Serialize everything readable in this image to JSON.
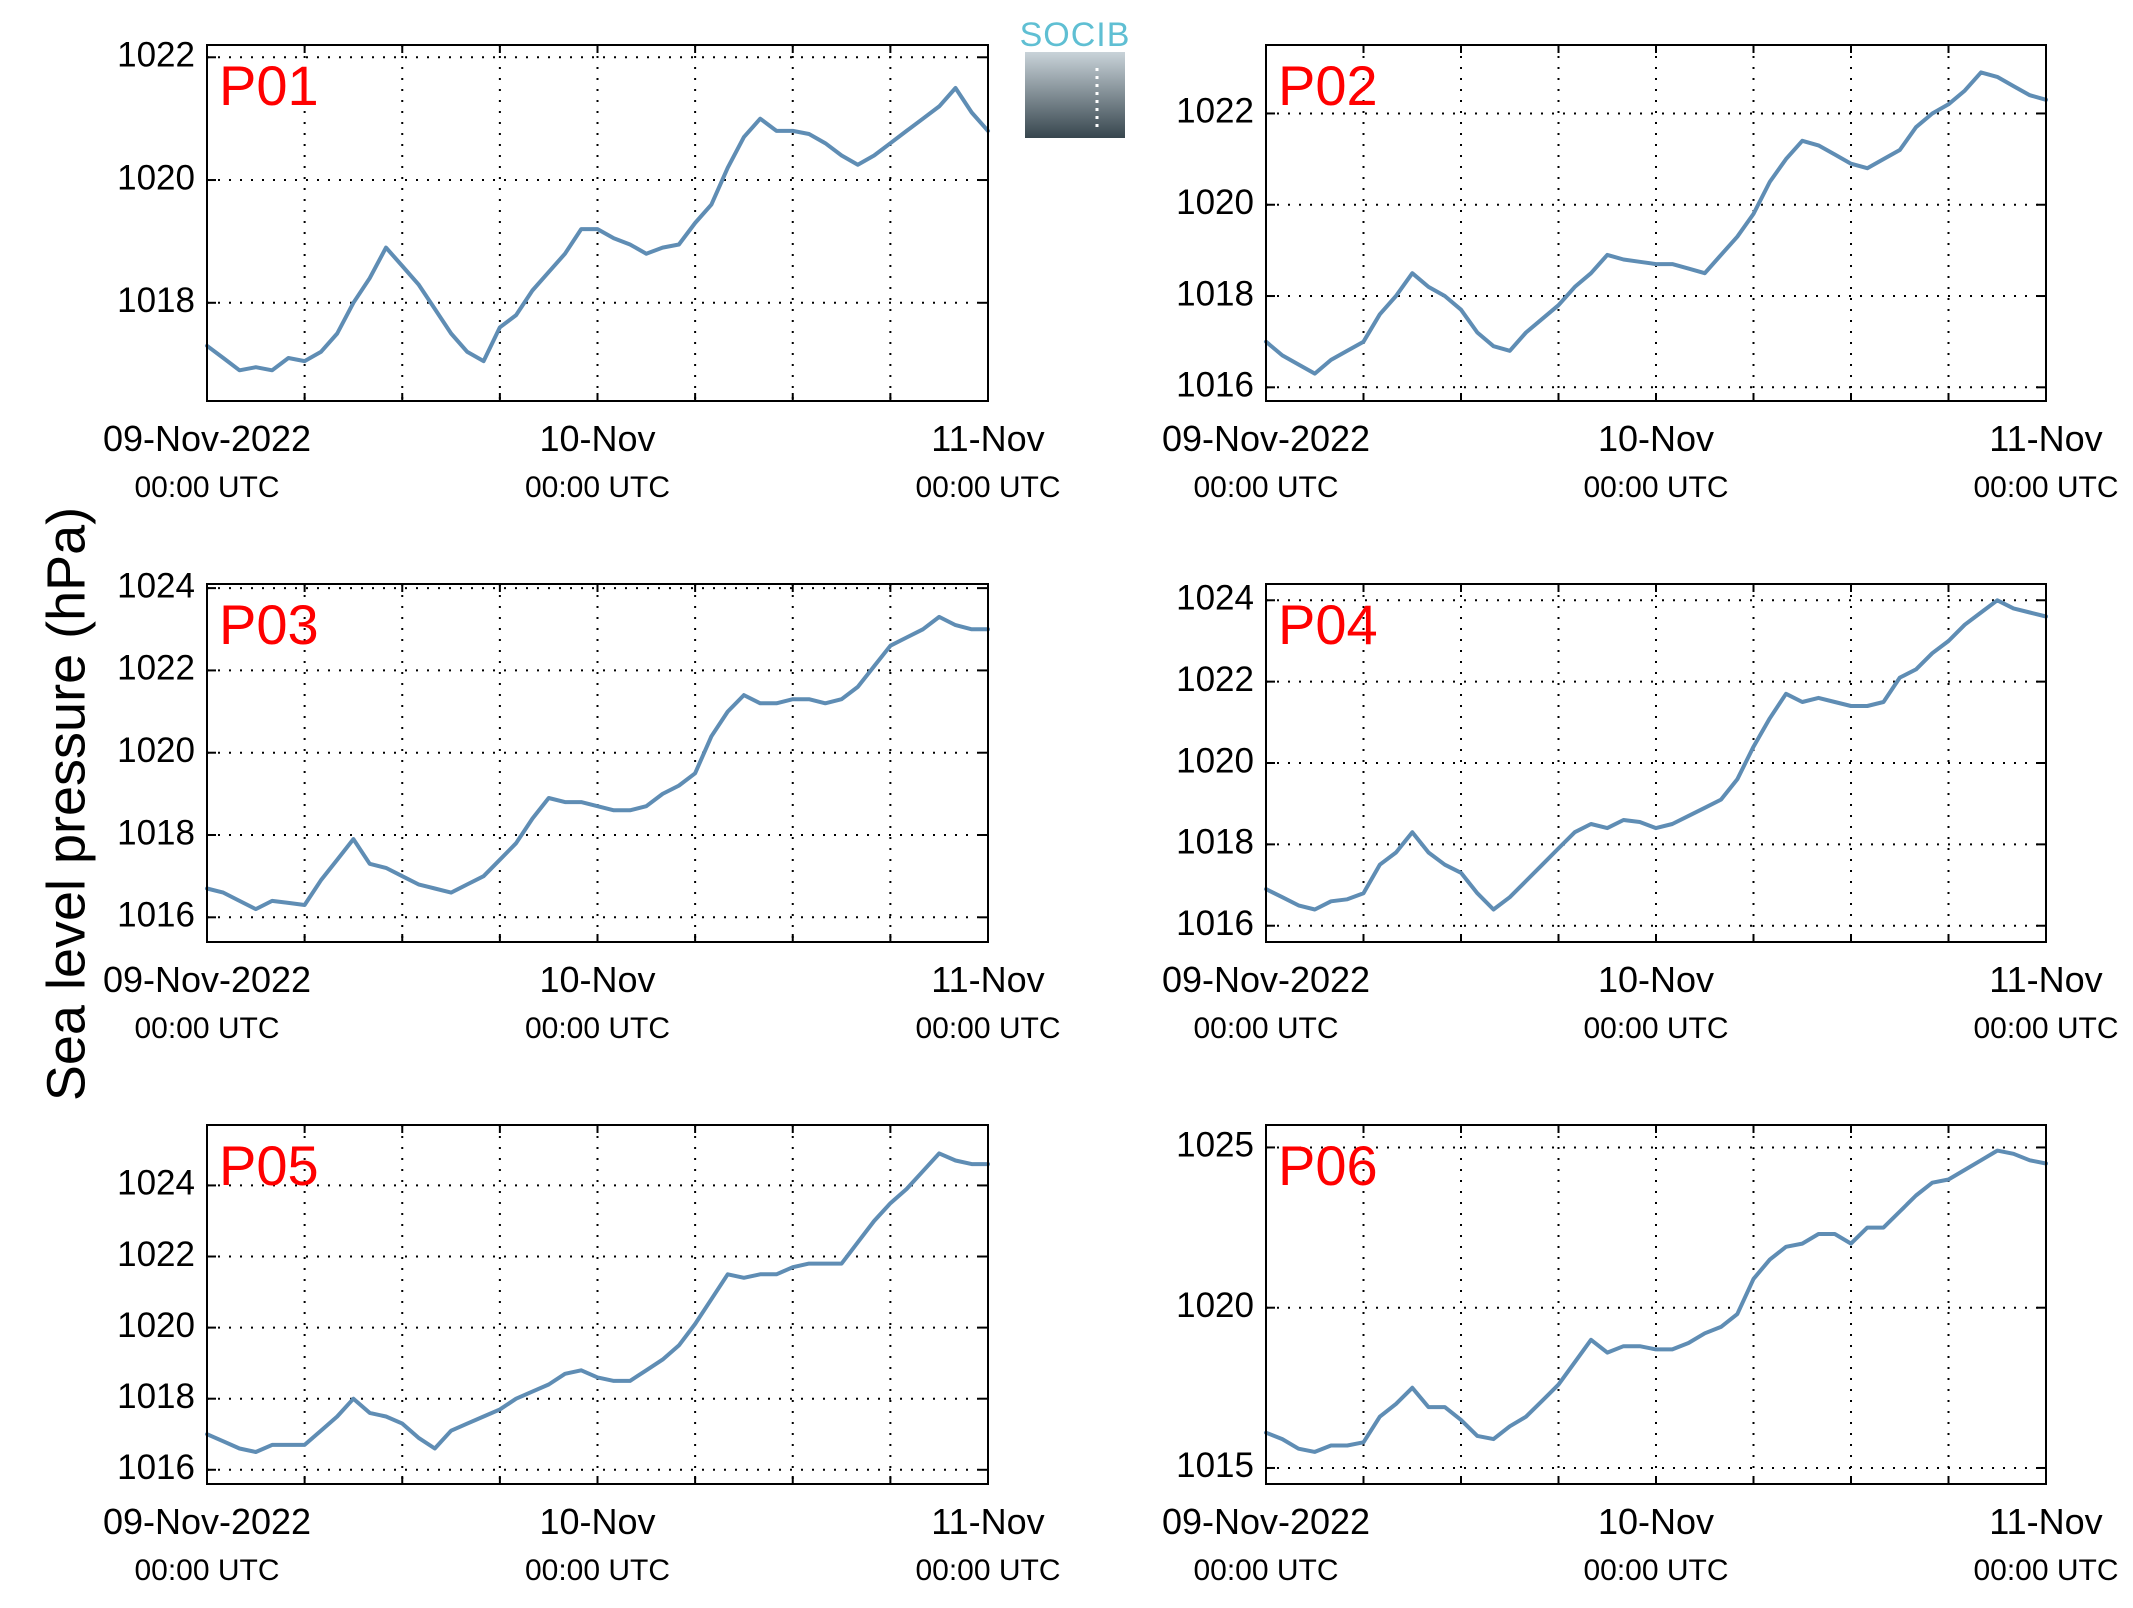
{
  "colors": {
    "series": "#5f8db4",
    "panel_label": "#ff0000",
    "logo_text": "#5fbfd3",
    "logo_top": "#c9d3d9",
    "logo_bottom": "#37464e"
  },
  "logo": {
    "text": "SOCIB"
  },
  "ylabel": "Sea level pressure (hPa)",
  "chart_data": [
    {
      "type": "line",
      "label": "P01",
      "ylim": [
        1016.4,
        1022.2
      ],
      "yticks": [
        1018,
        1020,
        1022
      ],
      "xlim": [
        0,
        48
      ],
      "xticks": [
        {
          "value": 0,
          "date": "09-Nov-2022",
          "time": "00:00 UTC"
        },
        {
          "value": 24,
          "date": "10-Nov",
          "time": "00:00 UTC"
        },
        {
          "value": 48,
          "date": "11-Nov",
          "time": "00:00 UTC"
        }
      ],
      "grid": true,
      "series": [
        {
          "x": [
            0,
            1,
            2,
            3,
            4,
            5,
            6,
            7,
            8,
            9,
            10,
            11,
            12,
            13,
            14,
            15,
            16,
            17,
            18,
            19,
            20,
            21,
            22,
            23,
            24,
            25,
            26,
            27,
            28,
            29,
            30,
            31,
            32,
            33,
            34,
            35,
            36,
            37,
            38,
            39,
            40,
            41,
            42,
            43,
            44,
            45,
            46,
            47,
            48
          ],
          "values": [
            1017.3,
            1017.1,
            1016.9,
            1016.95,
            1016.9,
            1017.1,
            1017.05,
            1017.2,
            1017.5,
            1018.0,
            1018.4,
            1018.9,
            1018.6,
            1018.3,
            1017.9,
            1017.5,
            1017.2,
            1017.05,
            1017.6,
            1017.8,
            1018.2,
            1018.5,
            1018.8,
            1019.2,
            1019.2,
            1019.05,
            1018.95,
            1018.8,
            1018.9,
            1018.95,
            1019.3,
            1019.6,
            1020.2,
            1020.7,
            1021.0,
            1020.8,
            1020.8,
            1020.75,
            1020.6,
            1020.4,
            1020.25,
            1020.4,
            1020.6,
            1020.8,
            1021.0,
            1021.2,
            1021.5,
            1021.1,
            1020.8
          ]
        }
      ]
    },
    {
      "type": "line",
      "label": "P02",
      "ylim": [
        1015.7,
        1023.5
      ],
      "yticks": [
        1016,
        1018,
        1020,
        1022
      ],
      "xlim": [
        0,
        48
      ],
      "xticks": [
        {
          "value": 0,
          "date": "09-Nov-2022",
          "time": "00:00 UTC"
        },
        {
          "value": 24,
          "date": "10-Nov",
          "time": "00:00 UTC"
        },
        {
          "value": 48,
          "date": "11-Nov",
          "time": "00:00 UTC"
        }
      ],
      "grid": true,
      "series": [
        {
          "x": [
            0,
            1,
            2,
            3,
            4,
            5,
            6,
            7,
            8,
            9,
            10,
            11,
            12,
            13,
            14,
            15,
            16,
            17,
            18,
            19,
            20,
            21,
            22,
            23,
            24,
            25,
            26,
            27,
            28,
            29,
            30,
            31,
            32,
            33,
            34,
            35,
            36,
            37,
            38,
            39,
            40,
            41,
            42,
            43,
            44,
            45,
            46,
            47,
            48
          ],
          "values": [
            1017.0,
            1016.7,
            1016.5,
            1016.3,
            1016.6,
            1016.8,
            1017.0,
            1017.6,
            1018.0,
            1018.5,
            1018.2,
            1018.0,
            1017.7,
            1017.2,
            1016.9,
            1016.8,
            1017.2,
            1017.5,
            1017.8,
            1018.2,
            1018.5,
            1018.9,
            1018.8,
            1018.75,
            1018.7,
            1018.7,
            1018.6,
            1018.5,
            1018.9,
            1019.3,
            1019.8,
            1020.5,
            1021.0,
            1021.4,
            1021.3,
            1021.1,
            1020.9,
            1020.8,
            1021.0,
            1021.2,
            1021.7,
            1022.0,
            1022.2,
            1022.5,
            1022.9,
            1022.8,
            1022.6,
            1022.4,
            1022.3
          ]
        }
      ]
    },
    {
      "type": "line",
      "label": "P03",
      "ylim": [
        1015.4,
        1024.1
      ],
      "yticks": [
        1016,
        1018,
        1020,
        1022,
        1024
      ],
      "xlim": [
        0,
        48
      ],
      "xticks": [
        {
          "value": 0,
          "date": "09-Nov-2022",
          "time": "00:00 UTC"
        },
        {
          "value": 24,
          "date": "10-Nov",
          "time": "00:00 UTC"
        },
        {
          "value": 48,
          "date": "11-Nov",
          "time": "00:00 UTC"
        }
      ],
      "grid": true,
      "series": [
        {
          "x": [
            0,
            1,
            2,
            3,
            4,
            5,
            6,
            7,
            8,
            9,
            10,
            11,
            12,
            13,
            14,
            15,
            16,
            17,
            18,
            19,
            20,
            21,
            22,
            23,
            24,
            25,
            26,
            27,
            28,
            29,
            30,
            31,
            32,
            33,
            34,
            35,
            36,
            37,
            38,
            39,
            40,
            41,
            42,
            43,
            44,
            45,
            46,
            47,
            48
          ],
          "values": [
            1016.7,
            1016.6,
            1016.4,
            1016.2,
            1016.4,
            1016.35,
            1016.3,
            1016.9,
            1017.4,
            1017.9,
            1017.3,
            1017.2,
            1017.0,
            1016.8,
            1016.7,
            1016.6,
            1016.8,
            1017.0,
            1017.4,
            1017.8,
            1018.4,
            1018.9,
            1018.8,
            1018.8,
            1018.7,
            1018.6,
            1018.6,
            1018.7,
            1019.0,
            1019.2,
            1019.5,
            1020.4,
            1021.0,
            1021.4,
            1021.2,
            1021.2,
            1021.3,
            1021.3,
            1021.2,
            1021.3,
            1021.6,
            1022.1,
            1022.6,
            1022.8,
            1023.0,
            1023.3,
            1023.1,
            1023.0,
            1023.0
          ]
        }
      ]
    },
    {
      "type": "line",
      "label": "P04",
      "ylim": [
        1015.6,
        1024.4
      ],
      "yticks": [
        1016,
        1018,
        1020,
        1022,
        1024
      ],
      "xlim": [
        0,
        48
      ],
      "xticks": [
        {
          "value": 0,
          "date": "09-Nov-2022",
          "time": "00:00 UTC"
        },
        {
          "value": 24,
          "date": "10-Nov",
          "time": "00:00 UTC"
        },
        {
          "value": 48,
          "date": "11-Nov",
          "time": "00:00 UTC"
        }
      ],
      "grid": true,
      "series": [
        {
          "x": [
            0,
            1,
            2,
            3,
            4,
            5,
            6,
            7,
            8,
            9,
            10,
            11,
            12,
            13,
            14,
            15,
            16,
            17,
            18,
            19,
            20,
            21,
            22,
            23,
            24,
            25,
            26,
            27,
            28,
            29,
            30,
            31,
            32,
            33,
            34,
            35,
            36,
            37,
            38,
            39,
            40,
            41,
            42,
            43,
            44,
            45,
            46,
            47,
            48
          ],
          "values": [
            1016.9,
            1016.7,
            1016.5,
            1016.4,
            1016.6,
            1016.65,
            1016.8,
            1017.5,
            1017.8,
            1018.3,
            1017.8,
            1017.5,
            1017.3,
            1016.8,
            1016.4,
            1016.7,
            1017.1,
            1017.5,
            1017.9,
            1018.3,
            1018.5,
            1018.4,
            1018.6,
            1018.55,
            1018.4,
            1018.5,
            1018.7,
            1018.9,
            1019.1,
            1019.6,
            1020.4,
            1021.1,
            1021.7,
            1021.5,
            1021.6,
            1021.5,
            1021.4,
            1021.4,
            1021.5,
            1022.1,
            1022.3,
            1022.7,
            1023.0,
            1023.4,
            1023.7,
            1024.0,
            1023.8,
            1023.7,
            1023.6
          ]
        }
      ]
    },
    {
      "type": "line",
      "label": "P05",
      "ylim": [
        1015.6,
        1025.7
      ],
      "yticks": [
        1016,
        1018,
        1020,
        1022,
        1024
      ],
      "xlim": [
        0,
        48
      ],
      "xticks": [
        {
          "value": 0,
          "date": "09-Nov-2022",
          "time": "00:00 UTC"
        },
        {
          "value": 24,
          "date": "10-Nov",
          "time": "00:00 UTC"
        },
        {
          "value": 48,
          "date": "11-Nov",
          "time": "00:00 UTC"
        }
      ],
      "grid": true,
      "series": [
        {
          "x": [
            0,
            1,
            2,
            3,
            4,
            5,
            6,
            7,
            8,
            9,
            10,
            11,
            12,
            13,
            14,
            15,
            16,
            17,
            18,
            19,
            20,
            21,
            22,
            23,
            24,
            25,
            26,
            27,
            28,
            29,
            30,
            31,
            32,
            33,
            34,
            35,
            36,
            37,
            38,
            39,
            40,
            41,
            42,
            43,
            44,
            45,
            46,
            47,
            48
          ],
          "values": [
            1017.0,
            1016.8,
            1016.6,
            1016.5,
            1016.7,
            1016.7,
            1016.7,
            1017.1,
            1017.5,
            1018.0,
            1017.6,
            1017.5,
            1017.3,
            1016.9,
            1016.6,
            1017.1,
            1017.3,
            1017.5,
            1017.7,
            1018.0,
            1018.2,
            1018.4,
            1018.7,
            1018.8,
            1018.6,
            1018.5,
            1018.5,
            1018.8,
            1019.1,
            1019.5,
            1020.1,
            1020.8,
            1021.5,
            1021.4,
            1021.5,
            1021.5,
            1021.7,
            1021.8,
            1021.8,
            1021.8,
            1022.4,
            1023.0,
            1023.5,
            1023.9,
            1024.4,
            1024.9,
            1024.7,
            1024.6,
            1024.6
          ]
        }
      ]
    },
    {
      "type": "line",
      "label": "P06",
      "ylim": [
        1014.5,
        1025.7
      ],
      "yticks": [
        1015,
        1020,
        1025
      ],
      "xlim": [
        0,
        48
      ],
      "xticks": [
        {
          "value": 0,
          "date": "09-Nov-2022",
          "time": "00:00 UTC"
        },
        {
          "value": 24,
          "date": "10-Nov",
          "time": "00:00 UTC"
        },
        {
          "value": 48,
          "date": "11-Nov",
          "time": "00:00 UTC"
        }
      ],
      "grid": true,
      "series": [
        {
          "x": [
            0,
            1,
            2,
            3,
            4,
            5,
            6,
            7,
            8,
            9,
            10,
            11,
            12,
            13,
            14,
            15,
            16,
            17,
            18,
            19,
            20,
            21,
            22,
            23,
            24,
            25,
            26,
            27,
            28,
            29,
            30,
            31,
            32,
            33,
            34,
            35,
            36,
            37,
            38,
            39,
            40,
            41,
            42,
            43,
            44,
            45,
            46,
            47,
            48
          ],
          "values": [
            1016.1,
            1015.9,
            1015.6,
            1015.5,
            1015.7,
            1015.7,
            1015.8,
            1016.6,
            1017.0,
            1017.5,
            1016.9,
            1016.9,
            1016.5,
            1016.0,
            1015.9,
            1016.3,
            1016.6,
            1017.1,
            1017.6,
            1018.3,
            1019.0,
            1018.6,
            1018.8,
            1018.8,
            1018.7,
            1018.7,
            1018.9,
            1019.2,
            1019.4,
            1019.8,
            1020.9,
            1021.5,
            1021.9,
            1022.0,
            1022.3,
            1022.3,
            1022.0,
            1022.5,
            1022.5,
            1023.0,
            1023.5,
            1023.9,
            1024.0,
            1024.3,
            1024.6,
            1024.9,
            1024.8,
            1024.6,
            1024.5
          ]
        }
      ]
    }
  ]
}
